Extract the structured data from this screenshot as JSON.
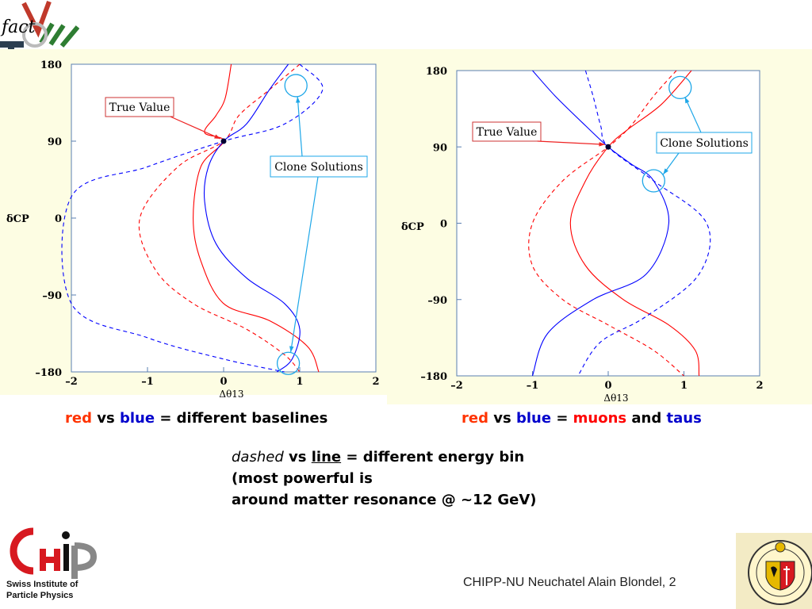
{
  "header": {
    "logo_text": "fact"
  },
  "chart_data": [
    {
      "type": "line",
      "ylabel": "δCP",
      "xlabel": "Δθ13",
      "xlim": [
        -2,
        2
      ],
      "ylim": [
        -180,
        180
      ],
      "xticks": [
        "-2",
        "-1",
        "0",
        "1",
        "2"
      ],
      "yticks": [
        "180",
        "90",
        "0",
        "-90",
        "-180"
      ],
      "true_value_point": [
        0,
        90
      ],
      "clone_points": [
        [
          0.95,
          155
        ],
        [
          0.85,
          -170
        ]
      ],
      "series": [
        {
          "color": "#ff0000",
          "dash": false,
          "points": [
            [
              0.1,
              180
            ],
            [
              0.02,
              140
            ],
            [
              -0.1,
              120
            ],
            [
              -0.25,
              100
            ],
            [
              0,
              90
            ],
            [
              -0.3,
              60
            ],
            [
              -0.4,
              0
            ],
            [
              -0.3,
              -50
            ],
            [
              0,
              -100
            ],
            [
              0.6,
              -120
            ],
            [
              1.1,
              -150
            ],
            [
              1.25,
              -180
            ]
          ]
        },
        {
          "color": "#ff0000",
          "dash": true,
          "points": [
            [
              1.0,
              180
            ],
            [
              0.6,
              150
            ],
            [
              0.2,
              120
            ],
            [
              0,
              90
            ],
            [
              -0.6,
              60
            ],
            [
              -1.1,
              0
            ],
            [
              -0.9,
              -60
            ],
            [
              -0.4,
              -100
            ],
            [
              0.3,
              -130
            ],
            [
              0.8,
              -160
            ],
            [
              1.0,
              -180
            ]
          ]
        },
        {
          "color": "#0000ff",
          "dash": false,
          "points": [
            [
              0.85,
              180
            ],
            [
              0.6,
              150
            ],
            [
              0.3,
              110
            ],
            [
              0,
              90
            ],
            [
              -0.2,
              60
            ],
            [
              -0.25,
              20
            ],
            [
              -0.1,
              -30
            ],
            [
              0.3,
              -70
            ],
            [
              0.8,
              -100
            ],
            [
              1.0,
              -130
            ],
            [
              0.9,
              -165
            ],
            [
              0.7,
              -180
            ]
          ]
        },
        {
          "color": "#0000ff",
          "dash": true,
          "points": [
            [
              1.0,
              180
            ],
            [
              1.3,
              150
            ],
            [
              0.8,
              110
            ],
            [
              0,
              90
            ],
            [
              -1.0,
              60
            ],
            [
              -2.0,
              25
            ],
            [
              -2.0,
              -100
            ],
            [
              -1.0,
              -140
            ],
            [
              0,
              -165
            ],
            [
              0.8,
              -180
            ]
          ]
        }
      ],
      "annotations": [
        "True Value",
        "Clone Solutions"
      ]
    },
    {
      "type": "line",
      "ylabel": "δCP",
      "xlabel": "Δθ13",
      "xlim": [
        -2,
        2
      ],
      "ylim": [
        -180,
        180
      ],
      "xticks": [
        "-2",
        "-1",
        "0",
        "1",
        "2"
      ],
      "yticks": [
        "180",
        "90",
        "0",
        "-90",
        "-180"
      ],
      "true_value_point": [
        0,
        90
      ],
      "clone_points": [
        [
          0.95,
          160
        ],
        [
          0.6,
          50
        ]
      ],
      "series": [
        {
          "color": "#ff0000",
          "dash": false,
          "points": [
            [
              1.1,
              180
            ],
            [
              0.7,
              140
            ],
            [
              0.25,
              110
            ],
            [
              0,
              90
            ],
            [
              -0.3,
              50
            ],
            [
              -0.5,
              0
            ],
            [
              -0.3,
              -50
            ],
            [
              0.2,
              -90
            ],
            [
              0.8,
              -120
            ],
            [
              1.15,
              -150
            ],
            [
              1.2,
              -180
            ]
          ]
        },
        {
          "color": "#ff0000",
          "dash": true,
          "points": [
            [
              0.9,
              180
            ],
            [
              0.6,
              150
            ],
            [
              0.3,
              115
            ],
            [
              0,
              90
            ],
            [
              -0.6,
              50
            ],
            [
              -1.0,
              0
            ],
            [
              -1.0,
              -50
            ],
            [
              -0.6,
              -90
            ],
            [
              0,
              -120
            ],
            [
              0.6,
              -150
            ],
            [
              1.0,
              -180
            ]
          ]
        },
        {
          "color": "#0000ff",
          "dash": false,
          "points": [
            [
              -1.0,
              180
            ],
            [
              -0.7,
              150
            ],
            [
              -0.3,
              115
            ],
            [
              0,
              90
            ],
            [
              0.3,
              70
            ],
            [
              0.6,
              50
            ],
            [
              0.8,
              0
            ],
            [
              0.5,
              -60
            ],
            [
              -0.2,
              -90
            ],
            [
              -0.8,
              -130
            ],
            [
              -1.0,
              -180
            ]
          ]
        },
        {
          "color": "#0000ff",
          "dash": true,
          "points": [
            [
              -0.3,
              180
            ],
            [
              -0.2,
              150
            ],
            [
              -0.1,
              115
            ],
            [
              0,
              90
            ],
            [
              0.6,
              50
            ],
            [
              1.3,
              0
            ],
            [
              1.2,
              -60
            ],
            [
              0.5,
              -110
            ],
            [
              -0.1,
              -140
            ],
            [
              -0.4,
              -180
            ]
          ]
        }
      ],
      "annotations": [
        "True Value",
        "Clone Solutions"
      ]
    }
  ],
  "captions": {
    "left": {
      "c1": "red",
      "c2": " vs ",
      "c3": "blue",
      "c4": " = different baselines"
    },
    "right": {
      "c1": "red",
      "c2": " vs ",
      "c3": "blue",
      "c4": " = ",
      "c5": "muons",
      "c6": " and ",
      "c7": "taus"
    }
  },
  "note": {
    "l1a": "dashed",
    "l1b": " vs ",
    "l1c": "line",
    "l1d": " = different energy bin",
    "l2": "(most powerful is",
    "l3": "around matter resonance @ ~12 GeV)"
  },
  "footer": {
    "text": "CHIPP-NU Neuchatel   Alain Blondel, 2"
  },
  "chipp": {
    "sub1": "Swiss Institute of",
    "sub2": "Particle Physics"
  },
  "colors": {
    "panel_bg": "#fdfde3",
    "red": "#ff0000",
    "blue": "#0000ff",
    "caption_red": "#ff3300",
    "caption_blue": "#0000cc",
    "note_red": "#ff0000"
  }
}
